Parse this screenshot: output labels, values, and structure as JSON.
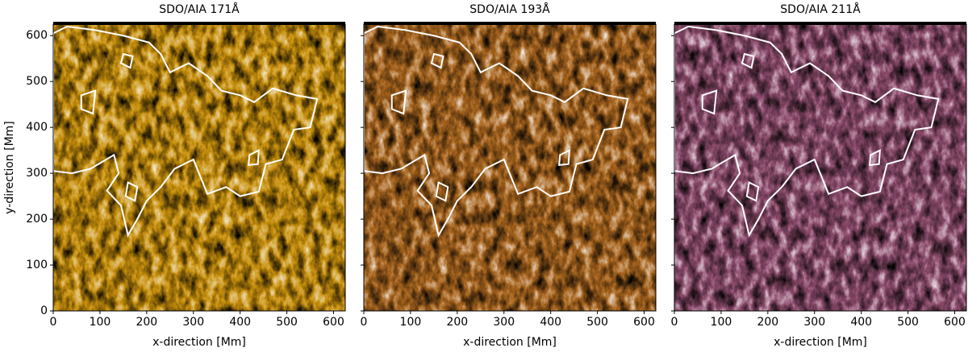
{
  "chart_data": [
    {
      "type": "image",
      "title": "SDO/AIA 171Å",
      "xlabel": "x-direction [Mm]",
      "ylabel": "y-direction [Mm]",
      "color": "#c8900c",
      "xlim": [
        0,
        625
      ],
      "ylim": [
        0,
        625
      ],
      "xticks": [
        0,
        100,
        200,
        300,
        400,
        500,
        600
      ],
      "yticks": [
        0,
        100,
        200,
        300,
        400,
        500,
        600
      ],
      "ytick_labels": true
    },
    {
      "type": "image",
      "title": "SDO/AIA 193Å",
      "xlabel": "x-direction [Mm]",
      "color": "#a8651e",
      "xlim": [
        0,
        625
      ],
      "ylim": [
        0,
        625
      ],
      "xticks": [
        0,
        100,
        200,
        300,
        400,
        500,
        600
      ],
      "yticks": [
        0,
        100,
        200,
        300,
        400,
        500,
        600
      ],
      "ytick_labels": false
    },
    {
      "type": "image",
      "title": "SDO/AIA 211Å",
      "xlabel": "x-direction [Mm]",
      "color": "#8c4c6c",
      "xlim": [
        0,
        625
      ],
      "ylim": [
        0,
        625
      ],
      "xticks": [
        0,
        100,
        200,
        300,
        400,
        500,
        600
      ],
      "yticks": [
        0,
        100,
        200,
        300,
        400,
        500,
        600
      ],
      "ytick_labels": false
    }
  ]
}
